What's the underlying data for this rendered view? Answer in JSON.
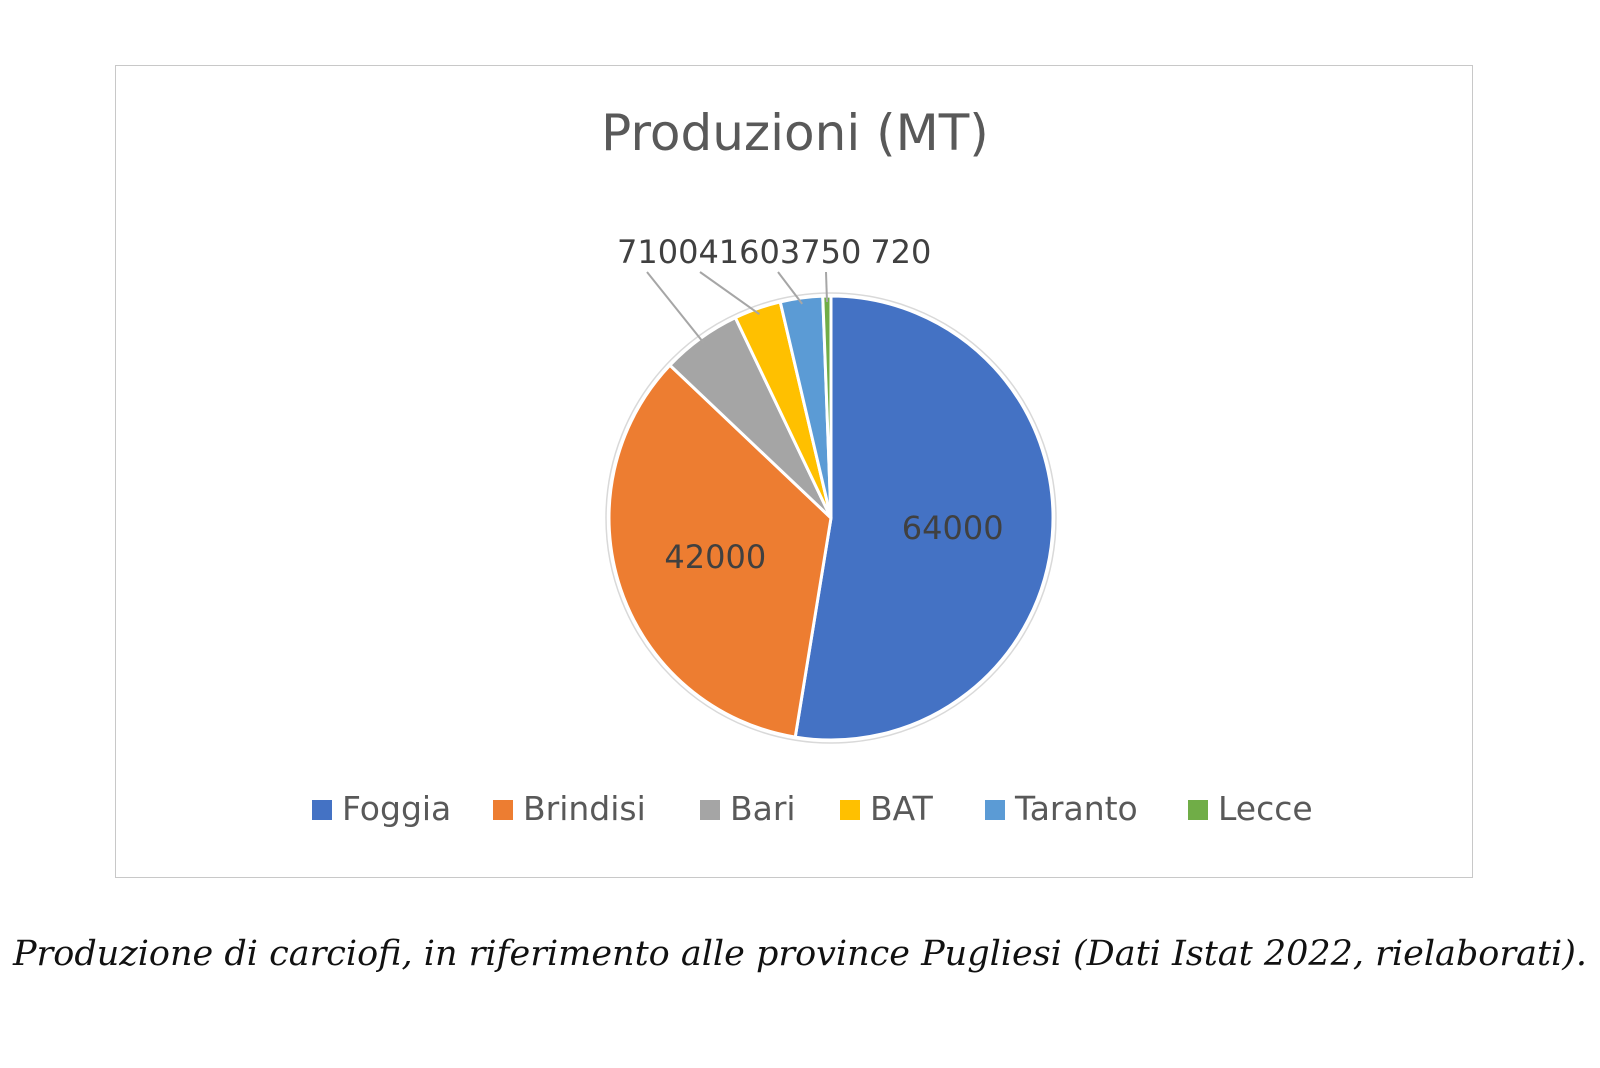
{
  "chart_data": {
    "type": "pie",
    "title": "Produzioni (MT)",
    "categories": [
      "Foggia",
      "Brindisi",
      "Bari",
      "BAT",
      "Taranto",
      "Lecce"
    ],
    "values": [
      64000,
      42000,
      7100,
      4160,
      3750,
      720
    ],
    "data_labels": [
      "64000",
      "42000",
      "7100",
      "4160",
      "3750",
      "720"
    ],
    "colors": [
      "#4472c4",
      "#ed7d31",
      "#a5a5a5",
      "#ffc000",
      "#5b9bd5",
      "#70ad47"
    ],
    "legend_position": "bottom"
  },
  "caption": "Produzione di carciofi, in riferimento alle province Pugliesi (Dati Istat 2022, rielaborati)."
}
